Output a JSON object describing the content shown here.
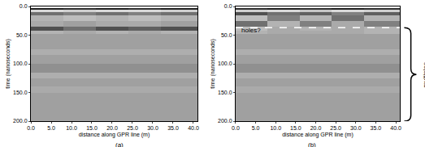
{
  "chart_data": [
    {
      "type": "heatmap",
      "label": "(a)",
      "x_label": "distance along GPR line (m)",
      "y_label": "time (nanoseconds)",
      "x": [
        0,
        8,
        16,
        24,
        32,
        41
      ],
      "y": [
        0,
        3,
        6,
        10,
        15,
        25,
        35,
        42,
        48,
        60,
        75,
        85,
        100,
        115,
        125,
        140,
        150,
        170,
        200
      ],
      "z": [
        [
          0.9,
          0.9,
          0.9,
          0.9,
          0.9
        ],
        [
          -0.8,
          -0.7,
          -0.8,
          -0.7,
          -0.8
        ],
        [
          0.6,
          0.5,
          0.6,
          0.6,
          0.5
        ],
        [
          -0.3,
          -0.2,
          -0.3,
          -0.2,
          -0.3
        ],
        [
          0.2,
          0.3,
          0.2,
          0.3,
          0.2
        ],
        [
          0.1,
          0,
          0.1,
          0.1,
          0
        ],
        [
          -0.5,
          -0.3,
          -0.5,
          -0.4,
          -0.5
        ],
        [
          0.2,
          0.1,
          0.2,
          0.1,
          0.2
        ],
        [
          0,
          0,
          0,
          0,
          0
        ],
        [
          0,
          0,
          0,
          0,
          0
        ],
        [
          0.15,
          0.15,
          0.15,
          0.15,
          0.15
        ],
        [
          0,
          0,
          0,
          0,
          0
        ],
        [
          -0.1,
          -0.1,
          -0.1,
          -0.1,
          -0.1
        ],
        [
          0.15,
          0.15,
          0.15,
          0.15,
          0.15
        ],
        [
          0,
          0,
          0,
          0,
          0
        ],
        [
          0.1,
          0.1,
          0.1,
          0.1,
          0.1
        ],
        [
          0,
          0,
          0,
          0,
          0
        ],
        [
          0,
          0,
          0,
          0,
          0
        ]
      ],
      "zlim": [
        -1,
        1
      ],
      "xlim": [
        0,
        41
      ],
      "ylim": [
        200,
        0
      ],
      "xticks": [
        {
          "value": 0,
          "label": "0.0"
        },
        {
          "value": 5,
          "label": "5.0"
        },
        {
          "value": 10,
          "label": "10.0"
        },
        {
          "value": 15,
          "label": "15.0"
        },
        {
          "value": 20,
          "label": "20.0"
        },
        {
          "value": 25,
          "label": "25.0"
        },
        {
          "value": 30,
          "label": "30.0"
        },
        {
          "value": 35,
          "label": "35.0"
        },
        {
          "value": 40,
          "label": "40.0"
        }
      ],
      "yticks": [
        {
          "value": 0,
          "label": "0.0"
        },
        {
          "value": 50,
          "label": "50.0"
        },
        {
          "value": 100,
          "label": "100.0"
        },
        {
          "value": 150,
          "label": "150.0"
        },
        {
          "value": 200,
          "label": "200.0"
        }
      ]
    },
    {
      "type": "heatmap",
      "label": "(b)",
      "x_label": "distance along GPR line (m)",
      "y_label": "time (nanoseconds)",
      "x": [
        0,
        8,
        16,
        24,
        32,
        41
      ],
      "y": [
        0,
        3,
        6,
        10,
        15,
        25,
        35,
        42,
        48,
        60,
        75,
        85,
        100,
        115,
        125,
        140,
        150,
        170,
        200
      ],
      "z": [
        [
          0.9,
          0.9,
          0.9,
          0.9,
          0.9
        ],
        [
          -0.7,
          -0.8,
          -0.7,
          -0.8,
          -0.7
        ],
        [
          0.5,
          0.6,
          0.4,
          0.6,
          0.5
        ],
        [
          -0.5,
          -0.3,
          -0.4,
          -0.2,
          -0.4
        ],
        [
          0.3,
          -0.2,
          0.2,
          -0.3,
          0.2
        ],
        [
          -0.3,
          0.2,
          -0.2,
          0.1,
          -0.2
        ],
        [
          0.3,
          0.1,
          0.2,
          0.1,
          0.2
        ],
        [
          0.2,
          0.1,
          0.1,
          0.1,
          0.2
        ],
        [
          0,
          0,
          0,
          0,
          0
        ],
        [
          0,
          0,
          0,
          0,
          0
        ],
        [
          0.15,
          0.15,
          0.15,
          0.15,
          0.15
        ],
        [
          0,
          0,
          0,
          0,
          0
        ],
        [
          -0.1,
          -0.1,
          -0.1,
          -0.1,
          -0.1
        ],
        [
          0.15,
          0.15,
          0.15,
          0.15,
          0.15
        ],
        [
          0,
          0,
          0,
          0,
          0
        ],
        [
          0.1,
          0.1,
          0.1,
          0.1,
          0.1
        ],
        [
          0,
          0,
          0,
          0,
          0
        ],
        [
          0,
          0,
          0,
          0,
          0
        ]
      ],
      "zlim": [
        -1,
        1
      ],
      "xlim": [
        0,
        41
      ],
      "ylim": [
        200,
        0
      ],
      "xticks": [
        {
          "value": 0,
          "label": "0.0"
        },
        {
          "value": 5,
          "label": "5.0"
        },
        {
          "value": 10,
          "label": "10.0"
        },
        {
          "value": 15,
          "label": "15.0"
        },
        {
          "value": 20,
          "label": "20.0"
        },
        {
          "value": 25,
          "label": "25.0"
        },
        {
          "value": 30,
          "label": "30.0"
        },
        {
          "value": 35,
          "label": "35.0"
        },
        {
          "value": 40,
          "label": "40.0"
        }
      ],
      "yticks": [
        {
          "value": 0,
          "label": "0.0"
        },
        {
          "value": 50,
          "label": "50.0"
        },
        {
          "value": 100,
          "label": "100.0"
        },
        {
          "value": 150,
          "label": "150.0"
        },
        {
          "value": 200,
          "label": "200.0"
        }
      ],
      "reference_line": {
        "y": 37,
        "x": [
          0,
          41
        ],
        "line_style": "dashed",
        "color": "#ffffff"
      },
      "annotations": [
        {
          "text": "holes?",
          "x": 1,
          "y": 42
        }
      ],
      "bracket": {
        "text": "multiples",
        "y": [
          37,
          200
        ]
      }
    }
  ]
}
